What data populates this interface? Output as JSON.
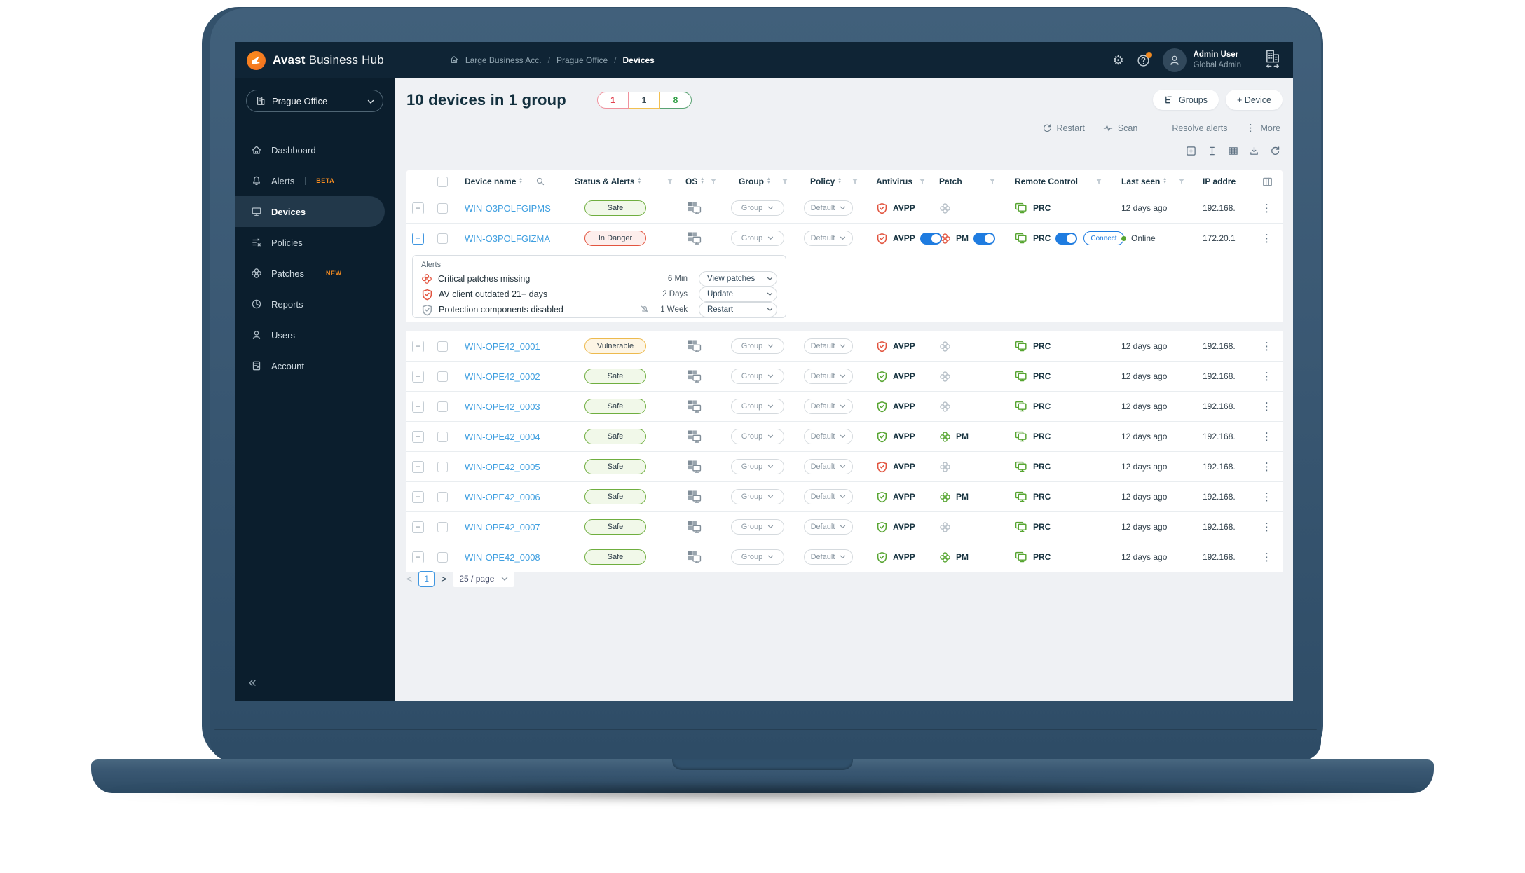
{
  "topbar": {
    "brand_bold": "Avast",
    "brand_rest": "Business Hub",
    "breadcrumb": [
      "Large Business Acc.",
      "Prague Office",
      "Devices"
    ],
    "user": {
      "name": "Admin User",
      "role": "Global Admin"
    }
  },
  "sidebar": {
    "org": "Prague Office",
    "items": [
      {
        "id": "dashboard",
        "label": "Dashboard",
        "icon": "home"
      },
      {
        "id": "alerts",
        "label": "Alerts",
        "icon": "bell",
        "badge": "BETA"
      },
      {
        "id": "devices",
        "label": "Devices",
        "icon": "monitor",
        "active": true
      },
      {
        "id": "policies",
        "label": "Policies",
        "icon": "policy"
      },
      {
        "id": "patches",
        "label": "Patches",
        "icon": "clover",
        "badge": "NEW"
      },
      {
        "id": "reports",
        "label": "Reports",
        "icon": "pie"
      },
      {
        "id": "users",
        "label": "Users",
        "icon": "person"
      },
      {
        "id": "account",
        "label": "Account",
        "icon": "doc"
      }
    ],
    "collapse": "«"
  },
  "header": {
    "title": "10 devices in 1 group",
    "counts": [
      {
        "value": "1",
        "kind": "danger"
      },
      {
        "value": "1",
        "kind": "warn"
      },
      {
        "value": "8",
        "kind": "ok"
      }
    ],
    "groups_button": "Groups",
    "device_button": "+ Device",
    "actions": [
      {
        "id": "restart",
        "label": "Restart",
        "icon": "restart"
      },
      {
        "id": "scan",
        "label": "Scan",
        "icon": "pulse"
      },
      {
        "id": "resolve-alerts",
        "label": "Resolve alerts",
        "icon": "bell"
      },
      {
        "id": "more",
        "label": "More",
        "icon": "dots"
      }
    ]
  },
  "table": {
    "columns": [
      {
        "id": "device-name",
        "label": "Device name",
        "sort": true,
        "search": true
      },
      {
        "id": "status",
        "label": "Status & Alerts",
        "sort": true,
        "filter": true
      },
      {
        "id": "os",
        "label": "OS",
        "sort": true,
        "filter": true
      },
      {
        "id": "group",
        "label": "Group",
        "sort": true,
        "filter": true
      },
      {
        "id": "policy",
        "label": "Policy",
        "sort": true,
        "filter": true
      },
      {
        "id": "antivirus",
        "label": "Antivirus",
        "filter": true
      },
      {
        "id": "patch",
        "label": "Patch",
        "filter": true
      },
      {
        "id": "remote",
        "label": "Remote Control",
        "filter": true
      },
      {
        "id": "last-seen",
        "label": "Last seen",
        "sort": true,
        "filter": true
      },
      {
        "id": "ip",
        "label": "IP addre"
      }
    ],
    "group_select": "Group",
    "policy_select": "Default",
    "av_label": "AVPP",
    "pm_label": "PM",
    "prc_label": "PRC",
    "connect_label": "Connect",
    "online_label": "Online",
    "rows": [
      {
        "name": "WIN-O3POLFGIPMS",
        "status": "Safe",
        "kind": "safe",
        "av": "red",
        "patch": "none",
        "seen": "12 days ago",
        "ip": "192.168."
      },
      {
        "name": "WIN-O3POLFGIZMA",
        "status": "In Danger",
        "kind": "danger",
        "expanded": true,
        "av": "red",
        "av_toggle": true,
        "patch": "red",
        "patch_toggle": true,
        "rc_toggle": true,
        "connect": true,
        "online": true,
        "ip": "172.20.1"
      },
      {
        "name": "WIN-OPE42_0001",
        "status": "Vulnerable",
        "kind": "warn",
        "av": "red",
        "patch": "none",
        "seen": "12 days ago",
        "ip": "192.168."
      },
      {
        "name": "WIN-OPE42_0002",
        "status": "Safe",
        "kind": "safe",
        "av": "green",
        "patch": "none",
        "seen": "12 days ago",
        "ip": "192.168."
      },
      {
        "name": "WIN-OPE42_0003",
        "status": "Safe",
        "kind": "safe",
        "av": "green",
        "patch": "none",
        "seen": "12 days ago",
        "ip": "192.168."
      },
      {
        "name": "WIN-OPE42_0004",
        "status": "Safe",
        "kind": "safe",
        "av": "green",
        "patch": "green",
        "seen": "12 days ago",
        "ip": "192.168."
      },
      {
        "name": "WIN-OPE42_0005",
        "status": "Safe",
        "kind": "safe",
        "av": "red",
        "patch": "none",
        "seen": "12 days ago",
        "ip": "192.168."
      },
      {
        "name": "WIN-OPE42_0006",
        "status": "Safe",
        "kind": "safe",
        "av": "green",
        "patch": "green",
        "seen": "12 days ago",
        "ip": "192.168."
      },
      {
        "name": "WIN-OPE42_0007",
        "status": "Safe",
        "kind": "safe",
        "av": "green",
        "patch": "none",
        "seen": "12 days ago",
        "ip": "192.168."
      },
      {
        "name": "WIN-OPE42_0008",
        "status": "Safe",
        "kind": "safe",
        "av": "green",
        "patch": "green",
        "seen": "12 days ago",
        "ip": "192.168."
      }
    ]
  },
  "alerts_panel": {
    "title": "Alerts",
    "rows": [
      {
        "icon": "clover-red",
        "text": "Critical patches missing",
        "time": "6 Min",
        "action": "View patches"
      },
      {
        "icon": "shield-red",
        "text": "AV client outdated 21+ days",
        "time": "2 Days",
        "action": "Update"
      },
      {
        "icon": "shield-gray",
        "muted_bell": true,
        "text": "Protection components disabled",
        "time": "1 Week",
        "action": "Restart"
      }
    ]
  },
  "pagination": {
    "prev": "<",
    "page": "1",
    "next": ">",
    "per_page": "25 / page"
  },
  "colors": {
    "accent_blue": "#1f7ce0",
    "danger_red": "#e2543f",
    "ok_green": "#57a531",
    "brand_orange": "#f18a21"
  }
}
